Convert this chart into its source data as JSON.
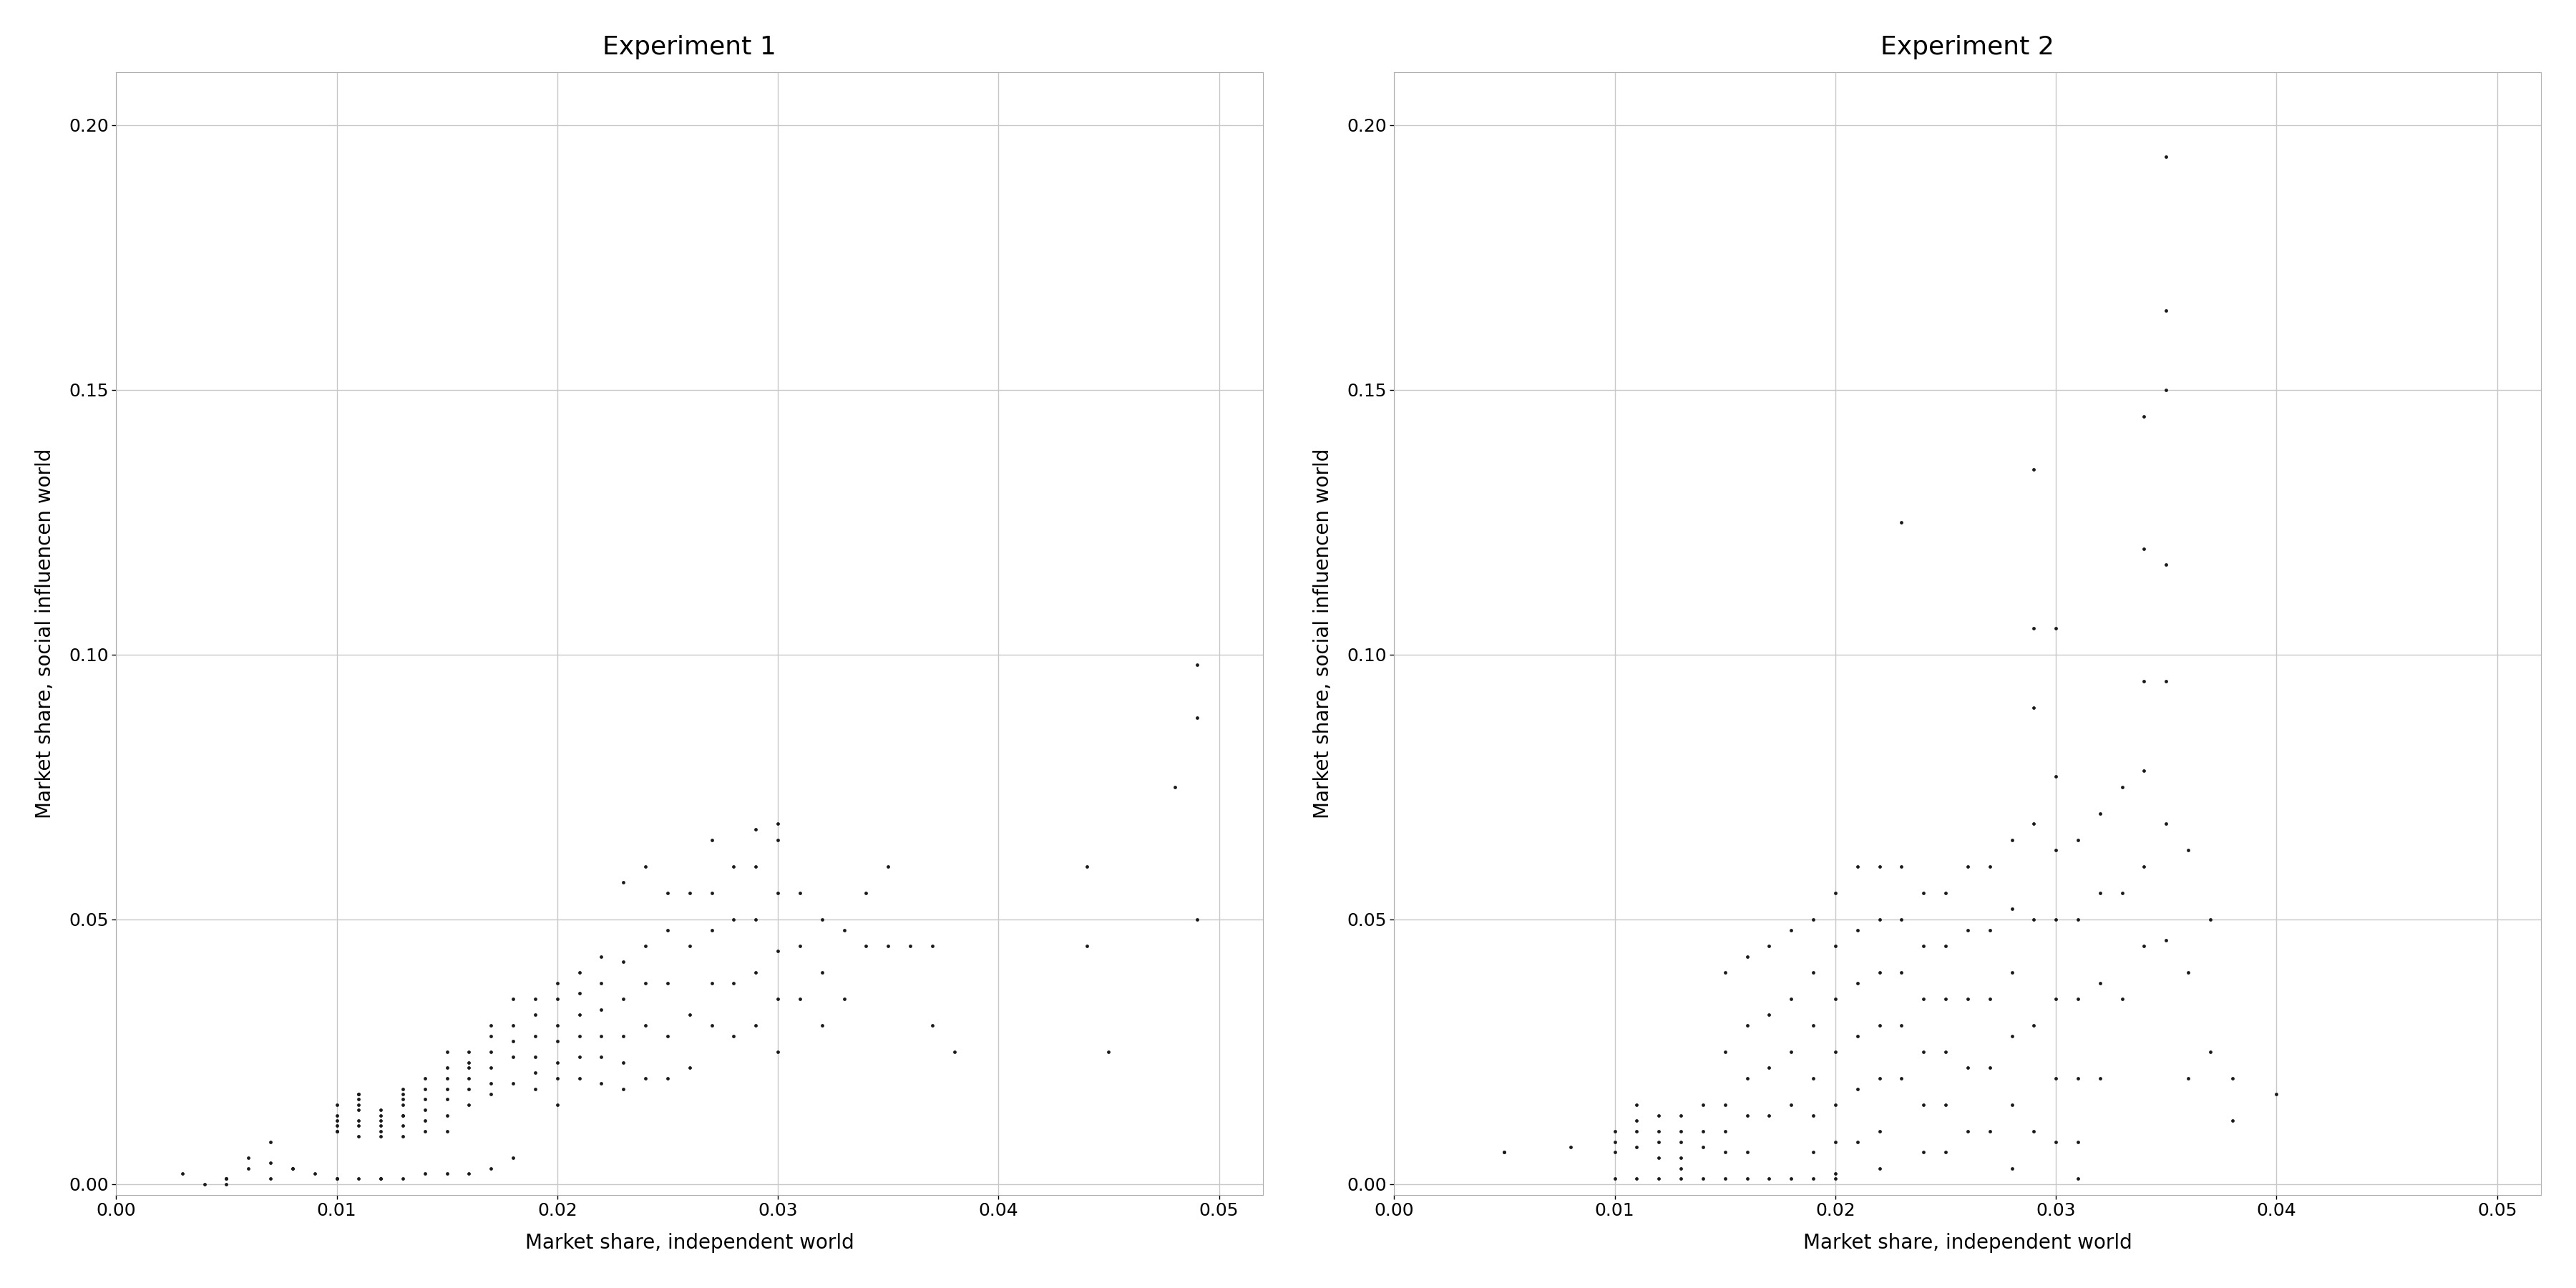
{
  "title1": "Experiment 1",
  "title2": "Experiment 2",
  "xlabel": "Market share, independent world",
  "ylabel": "Market share, social influencen world",
  "xlim1": [
    0.0,
    0.052
  ],
  "ylim": [
    -0.002,
    0.21
  ],
  "xlim2": [
    0.0,
    0.052
  ],
  "xticks1": [
    0.0,
    0.01,
    0.02,
    0.03,
    0.04,
    0.05
  ],
  "xticks2": [
    0.0,
    0.01,
    0.02,
    0.03,
    0.04,
    0.05
  ],
  "yticks": [
    0.0,
    0.05,
    0.1,
    0.15,
    0.2
  ],
  "background_color": "#ffffff",
  "grid_color": "#c8c8c8",
  "dot_color": "#1a1a1a",
  "dot_size": 12,
  "title_fontsize": 26,
  "label_fontsize": 20,
  "tick_fontsize": 18,
  "exp1_x": [
    0.003,
    0.004,
    0.005,
    0.005,
    0.005,
    0.006,
    0.006,
    0.007,
    0.007,
    0.007,
    0.008,
    0.008,
    0.009,
    0.01,
    0.01,
    0.01,
    0.01,
    0.01,
    0.01,
    0.01,
    0.01,
    0.011,
    0.011,
    0.011,
    0.011,
    0.011,
    0.011,
    0.011,
    0.011,
    0.011,
    0.012,
    0.012,
    0.012,
    0.012,
    0.012,
    0.012,
    0.012,
    0.012,
    0.013,
    0.013,
    0.013,
    0.013,
    0.013,
    0.013,
    0.013,
    0.013,
    0.013,
    0.014,
    0.014,
    0.014,
    0.014,
    0.014,
    0.014,
    0.014,
    0.015,
    0.015,
    0.015,
    0.015,
    0.015,
    0.015,
    0.015,
    0.015,
    0.016,
    0.016,
    0.016,
    0.016,
    0.016,
    0.016,
    0.016,
    0.017,
    0.017,
    0.017,
    0.017,
    0.017,
    0.017,
    0.017,
    0.018,
    0.018,
    0.018,
    0.018,
    0.018,
    0.018,
    0.019,
    0.019,
    0.019,
    0.019,
    0.019,
    0.019,
    0.02,
    0.02,
    0.02,
    0.02,
    0.02,
    0.02,
    0.02,
    0.021,
    0.021,
    0.021,
    0.021,
    0.021,
    0.021,
    0.022,
    0.022,
    0.022,
    0.022,
    0.022,
    0.022,
    0.023,
    0.023,
    0.023,
    0.023,
    0.023,
    0.023,
    0.024,
    0.024,
    0.024,
    0.024,
    0.024,
    0.025,
    0.025,
    0.025,
    0.025,
    0.025,
    0.026,
    0.026,
    0.026,
    0.026,
    0.027,
    0.027,
    0.027,
    0.027,
    0.027,
    0.028,
    0.028,
    0.028,
    0.028,
    0.029,
    0.029,
    0.029,
    0.029,
    0.029,
    0.03,
    0.03,
    0.03,
    0.03,
    0.03,
    0.03,
    0.031,
    0.031,
    0.031,
    0.032,
    0.032,
    0.032,
    0.033,
    0.033,
    0.034,
    0.034,
    0.035,
    0.035,
    0.036,
    0.037,
    0.037,
    0.038,
    0.044,
    0.044,
    0.045,
    0.048,
    0.049,
    0.049,
    0.049
  ],
  "exp1_y": [
    0.002,
    0.0,
    0.001,
    0.001,
    0.0,
    0.005,
    0.003,
    0.004,
    0.001,
    0.008,
    0.003,
    0.003,
    0.002,
    0.01,
    0.012,
    0.015,
    0.013,
    0.011,
    0.01,
    0.001,
    0.001,
    0.017,
    0.017,
    0.016,
    0.015,
    0.014,
    0.012,
    0.011,
    0.009,
    0.001,
    0.014,
    0.013,
    0.012,
    0.011,
    0.01,
    0.009,
    0.001,
    0.001,
    0.018,
    0.017,
    0.016,
    0.015,
    0.013,
    0.013,
    0.011,
    0.009,
    0.001,
    0.02,
    0.018,
    0.016,
    0.014,
    0.012,
    0.01,
    0.002,
    0.025,
    0.022,
    0.02,
    0.018,
    0.016,
    0.013,
    0.01,
    0.002,
    0.025,
    0.023,
    0.022,
    0.02,
    0.018,
    0.015,
    0.002,
    0.03,
    0.028,
    0.025,
    0.022,
    0.019,
    0.017,
    0.003,
    0.035,
    0.03,
    0.027,
    0.024,
    0.019,
    0.005,
    0.035,
    0.032,
    0.028,
    0.024,
    0.021,
    0.018,
    0.038,
    0.035,
    0.03,
    0.027,
    0.023,
    0.02,
    0.015,
    0.04,
    0.036,
    0.032,
    0.028,
    0.024,
    0.02,
    0.043,
    0.038,
    0.033,
    0.028,
    0.024,
    0.019,
    0.057,
    0.042,
    0.035,
    0.028,
    0.023,
    0.018,
    0.06,
    0.045,
    0.038,
    0.03,
    0.02,
    0.055,
    0.048,
    0.038,
    0.028,
    0.02,
    0.055,
    0.045,
    0.032,
    0.022,
    0.065,
    0.055,
    0.048,
    0.038,
    0.03,
    0.06,
    0.05,
    0.038,
    0.028,
    0.067,
    0.06,
    0.05,
    0.04,
    0.03,
    0.068,
    0.065,
    0.055,
    0.044,
    0.035,
    0.025,
    0.055,
    0.045,
    0.035,
    0.05,
    0.04,
    0.03,
    0.048,
    0.035,
    0.055,
    0.045,
    0.06,
    0.045,
    0.045,
    0.045,
    0.03,
    0.025,
    0.06,
    0.045,
    0.025,
    0.075,
    0.098,
    0.088,
    0.05
  ],
  "exp2_x": [
    0.005,
    0.005,
    0.008,
    0.01,
    0.01,
    0.01,
    0.01,
    0.011,
    0.011,
    0.011,
    0.011,
    0.011,
    0.012,
    0.012,
    0.012,
    0.012,
    0.012,
    0.013,
    0.013,
    0.013,
    0.013,
    0.013,
    0.013,
    0.014,
    0.014,
    0.014,
    0.014,
    0.015,
    0.015,
    0.015,
    0.015,
    0.015,
    0.015,
    0.016,
    0.016,
    0.016,
    0.016,
    0.016,
    0.016,
    0.017,
    0.017,
    0.017,
    0.017,
    0.017,
    0.018,
    0.018,
    0.018,
    0.018,
    0.018,
    0.019,
    0.019,
    0.019,
    0.019,
    0.019,
    0.019,
    0.019,
    0.02,
    0.02,
    0.02,
    0.02,
    0.02,
    0.02,
    0.02,
    0.02,
    0.021,
    0.021,
    0.021,
    0.021,
    0.021,
    0.021,
    0.022,
    0.022,
    0.022,
    0.022,
    0.022,
    0.022,
    0.022,
    0.023,
    0.023,
    0.023,
    0.023,
    0.023,
    0.023,
    0.024,
    0.024,
    0.024,
    0.024,
    0.024,
    0.024,
    0.025,
    0.025,
    0.025,
    0.025,
    0.025,
    0.025,
    0.026,
    0.026,
    0.026,
    0.026,
    0.026,
    0.027,
    0.027,
    0.027,
    0.027,
    0.027,
    0.028,
    0.028,
    0.028,
    0.028,
    0.028,
    0.028,
    0.029,
    0.029,
    0.029,
    0.029,
    0.029,
    0.029,
    0.029,
    0.03,
    0.03,
    0.03,
    0.03,
    0.03,
    0.03,
    0.03,
    0.031,
    0.031,
    0.031,
    0.031,
    0.031,
    0.031,
    0.032,
    0.032,
    0.032,
    0.032,
    0.033,
    0.033,
    0.033,
    0.034,
    0.034,
    0.034,
    0.034,
    0.034,
    0.034,
    0.035,
    0.035,
    0.035,
    0.035,
    0.035,
    0.035,
    0.035,
    0.036,
    0.036,
    0.036,
    0.037,
    0.037,
    0.038,
    0.038,
    0.04
  ],
  "exp2_y": [
    0.006,
    0.006,
    0.007,
    0.01,
    0.008,
    0.006,
    0.001,
    0.015,
    0.012,
    0.01,
    0.007,
    0.001,
    0.013,
    0.01,
    0.008,
    0.005,
    0.001,
    0.013,
    0.01,
    0.008,
    0.005,
    0.003,
    0.001,
    0.015,
    0.01,
    0.007,
    0.001,
    0.04,
    0.025,
    0.015,
    0.01,
    0.006,
    0.001,
    0.043,
    0.03,
    0.02,
    0.013,
    0.006,
    0.001,
    0.045,
    0.032,
    0.022,
    0.013,
    0.001,
    0.048,
    0.035,
    0.025,
    0.015,
    0.001,
    0.05,
    0.04,
    0.03,
    0.02,
    0.013,
    0.006,
    0.001,
    0.055,
    0.045,
    0.035,
    0.025,
    0.015,
    0.008,
    0.002,
    0.001,
    0.06,
    0.048,
    0.038,
    0.028,
    0.018,
    0.008,
    0.06,
    0.05,
    0.04,
    0.03,
    0.02,
    0.01,
    0.003,
    0.125,
    0.06,
    0.05,
    0.04,
    0.03,
    0.02,
    0.055,
    0.045,
    0.035,
    0.025,
    0.015,
    0.006,
    0.055,
    0.045,
    0.035,
    0.025,
    0.015,
    0.006,
    0.06,
    0.048,
    0.035,
    0.022,
    0.01,
    0.06,
    0.048,
    0.035,
    0.022,
    0.01,
    0.065,
    0.052,
    0.04,
    0.028,
    0.015,
    0.003,
    0.135,
    0.105,
    0.09,
    0.068,
    0.05,
    0.03,
    0.01,
    0.105,
    0.077,
    0.063,
    0.05,
    0.035,
    0.02,
    0.008,
    0.065,
    0.05,
    0.035,
    0.02,
    0.008,
    0.001,
    0.07,
    0.055,
    0.038,
    0.02,
    0.075,
    0.055,
    0.035,
    0.145,
    0.12,
    0.095,
    0.078,
    0.06,
    0.045,
    0.194,
    0.165,
    0.15,
    0.117,
    0.095,
    0.068,
    0.046,
    0.063,
    0.04,
    0.02,
    0.05,
    0.025,
    0.02,
    0.012,
    0.017
  ]
}
